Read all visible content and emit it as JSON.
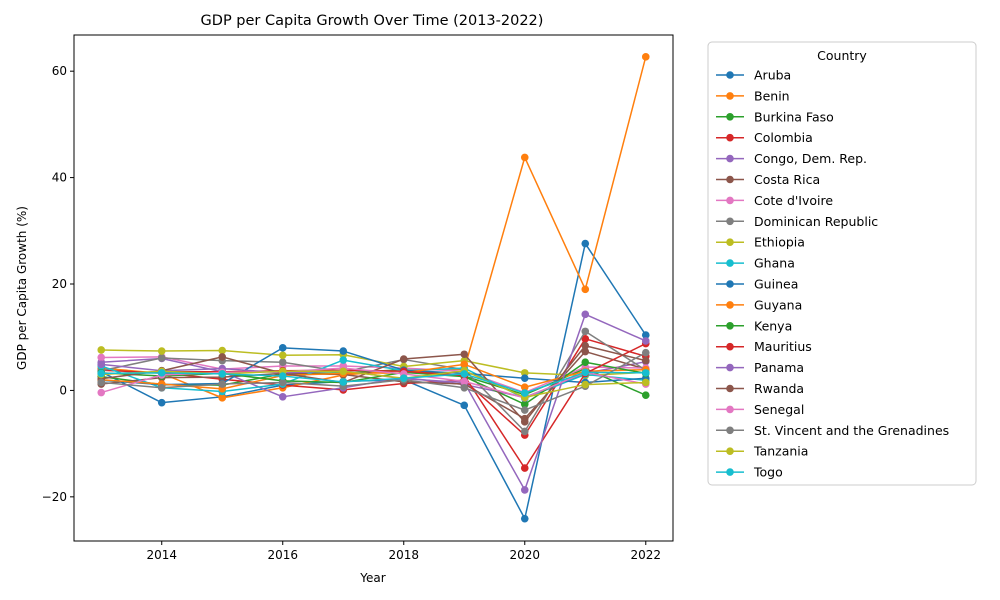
{
  "chart_data": {
    "type": "line",
    "title": "GDP per Capita Growth Over Time (2013-2022)",
    "xlabel": "Year",
    "ylabel": "GDP per Capita Growth (%)",
    "xlim": [
      2012.55,
      2022.45
    ],
    "ylim": [
      -28.3,
      66.8
    ],
    "x_ticks": [
      2014,
      2016,
      2018,
      2020,
      2022
    ],
    "y_ticks": [
      -20,
      0,
      20,
      40,
      60
    ],
    "grid": false,
    "legend": {
      "title": "Country",
      "placement": "outside-right"
    },
    "x": [
      2013,
      2014,
      2015,
      2016,
      2017,
      2018,
      2019,
      2020,
      2021,
      2022
    ],
    "series": [
      {
        "name": "Aruba",
        "color": "#1f77b4",
        "values": [
          3.5,
          -2.3,
          -1.2,
          1.0,
          1.7,
          2.0,
          -2.8,
          -24.1,
          27.6,
          10.4
        ]
      },
      {
        "name": "Benin",
        "color": "#ff7f0e",
        "values": [
          4.2,
          3.2,
          -1.4,
          0.5,
          2.9,
          3.8,
          4.0,
          43.8,
          19.0,
          62.7
        ]
      },
      {
        "name": "Burkina Faso",
        "color": "#2ca02c",
        "values": [
          2.6,
          1.1,
          1.0,
          3.1,
          3.3,
          3.9,
          2.7,
          -0.8,
          4.1,
          -0.9
        ]
      },
      {
        "name": "Colombia",
        "color": "#d62728",
        "values": [
          3.8,
          3.3,
          2.1,
          1.0,
          0.1,
          1.3,
          1.9,
          -8.4,
          9.7,
          6.4
        ]
      },
      {
        "name": "Congo, Dem. Rep.",
        "color": "#9467bd",
        "values": [
          5.3,
          6.0,
          3.5,
          -1.2,
          0.5,
          2.4,
          1.1,
          -1.3,
          3.2,
          5.4
        ]
      },
      {
        "name": "Costa Rica",
        "color": "#8c564b",
        "values": [
          1.2,
          2.4,
          2.5,
          3.2,
          3.0,
          1.6,
          1.2,
          -5.3,
          7.3,
          4.0
        ]
      },
      {
        "name": "Cote d'Ivoire",
        "color": "#e377c2",
        "values": [
          6.2,
          6.3,
          4.0,
          4.6,
          4.6,
          4.2,
          3.6,
          -0.4,
          4.4,
          4.2
        ]
      },
      {
        "name": "Dominican Republic",
        "color": "#7f7f7f",
        "values": [
          3.7,
          6.1,
          5.6,
          5.3,
          3.5,
          5.8,
          3.9,
          -7.7,
          11.1,
          3.8
        ]
      },
      {
        "name": "Ethiopia",
        "color": "#bcbd22",
        "values": [
          7.6,
          7.4,
          7.5,
          6.6,
          6.7,
          4.5,
          5.6,
          3.3,
          2.8,
          3.4
        ]
      },
      {
        "name": "Ghana",
        "color": "#17becf",
        "values": [
          4.6,
          0.5,
          -0.2,
          1.2,
          5.7,
          3.7,
          4.2,
          -1.5,
          3.0,
          1.9
        ]
      },
      {
        "name": "Guinea",
        "color": "#1f77b4",
        "values": [
          1.9,
          1.1,
          1.3,
          8.0,
          7.4,
          3.8,
          3.2,
          2.3,
          1.5,
          2.3
        ]
      },
      {
        "name": "Guyana",
        "color": "#ff7f0e",
        "values": [
          2.0,
          1.2,
          0.3,
          2.8,
          3.2,
          3.3,
          4.9,
          0.6,
          3.6,
          3.9
        ]
      },
      {
        "name": "Kenya",
        "color": "#2ca02c",
        "values": [
          3.3,
          2.7,
          3.2,
          1.8,
          1.5,
          3.4,
          2.6,
          -2.6,
          5.3,
          3.2
        ]
      },
      {
        "name": "Mauritius",
        "color": "#d62728",
        "values": [
          3.1,
          3.5,
          3.5,
          3.7,
          3.8,
          3.6,
          2.8,
          -14.6,
          3.2,
          8.8
        ]
      },
      {
        "name": "Panama",
        "color": "#9467bd",
        "values": [
          4.9,
          3.7,
          4.1,
          3.3,
          3.7,
          2.2,
          1.5,
          -18.7,
          14.3,
          9.3
        ]
      },
      {
        "name": "Rwanda",
        "color": "#8c564b",
        "values": [
          2.2,
          3.7,
          6.3,
          3.2,
          1.5,
          5.9,
          6.8,
          -5.9,
          8.4,
          5.6
        ]
      },
      {
        "name": "Senegal",
        "color": "#e377c2",
        "values": [
          -0.4,
          2.9,
          3.4,
          3.5,
          4.2,
          3.1,
          1.7,
          -1.4,
          3.4,
          1.2
        ]
      },
      {
        "name": "St. Vincent and the Grenadines",
        "color": "#7f7f7f",
        "values": [
          1.5,
          0.5,
          1.2,
          1.5,
          0.8,
          2.0,
          0.5,
          -3.7,
          0.8,
          7.1
        ]
      },
      {
        "name": "Tanzania",
        "color": "#bcbd22",
        "values": [
          3.0,
          3.6,
          3.1,
          3.6,
          3.6,
          2.3,
          3.7,
          -1.3,
          1.1,
          1.5
        ]
      },
      {
        "name": "Togo",
        "color": "#17becf",
        "values": [
          3.2,
          3.3,
          3.1,
          2.7,
          1.6,
          2.3,
          3.1,
          -0.5,
          3.4,
          3.3
        ]
      }
    ]
  }
}
